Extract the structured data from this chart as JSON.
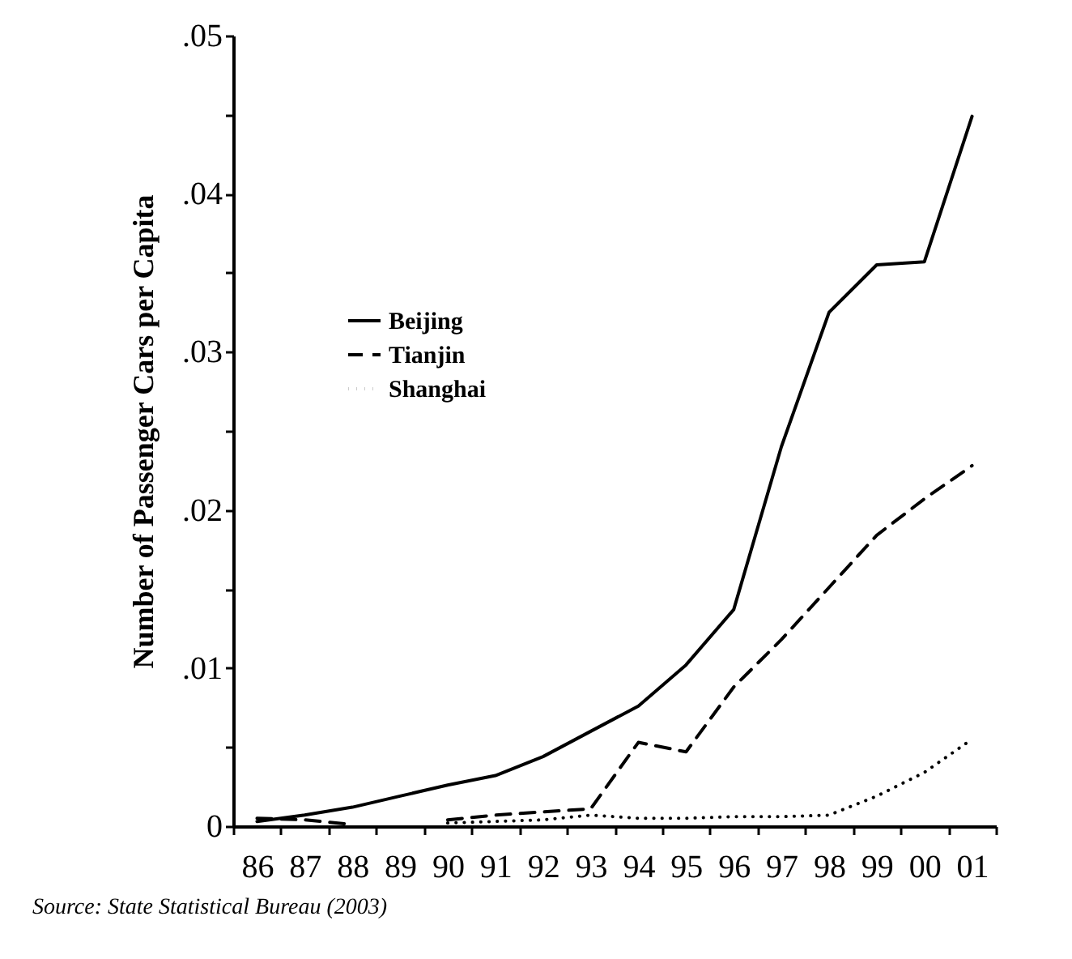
{
  "chart_data": {
    "type": "line",
    "ylabel": "Number of Passenger Cars per Capita",
    "annotations": [
      "Source: State Statistical Bureau (2003)"
    ],
    "categories": [
      "86",
      "87",
      "88",
      "89",
      "90",
      "91",
      "92",
      "93",
      "94",
      "95",
      "96",
      "97",
      "98",
      "99",
      "00",
      "01"
    ],
    "series": [
      {
        "name": "Beijing",
        "color": "#000000",
        "line_style": "solid",
        "values": [
          0.0003,
          0.0007,
          0.0012,
          0.0019,
          0.0026,
          0.0032,
          0.0044,
          0.006,
          0.0076,
          0.0102,
          0.0137,
          0.024,
          0.0325,
          0.0355,
          0.0357,
          0.0449
        ]
      },
      {
        "name": "Tianjin",
        "color": "#000000",
        "line_style": "dashed",
        "values": [
          0.0005,
          0.0004,
          0.0001,
          null,
          0.0004,
          0.0007,
          0.0009,
          0.0011,
          0.0053,
          0.0047,
          0.0088,
          0.0118,
          0.0151,
          0.0184,
          0.0207,
          0.0228
        ]
      },
      {
        "name": "Shanghai",
        "color": "#000000",
        "line_style": "dotted",
        "values": [
          null,
          null,
          null,
          null,
          0.0002,
          0.0003,
          0.0004,
          0.0007,
          0.0005,
          0.0005,
          0.0006,
          0.0006,
          0.0007,
          0.0019,
          0.0034,
          0.0055
        ]
      }
    ],
    "ylim": [
      0,
      0.05
    ],
    "yticks": [
      {
        "value": 0,
        "label": "0"
      },
      {
        "value": 0.005,
        "label": null
      },
      {
        "value": 0.01,
        "label": ".01"
      },
      {
        "value": 0.015,
        "label": null
      },
      {
        "value": 0.02,
        "label": ".02"
      },
      {
        "value": 0.025,
        "label": null
      },
      {
        "value": 0.03,
        "label": ".03"
      },
      {
        "value": 0.035,
        "label": null
      },
      {
        "value": 0.04,
        "label": ".04"
      },
      {
        "value": 0.045,
        "label": null
      },
      {
        "value": 0.05,
        "label": ".05"
      }
    ],
    "legend": "top left",
    "grid": false
  }
}
